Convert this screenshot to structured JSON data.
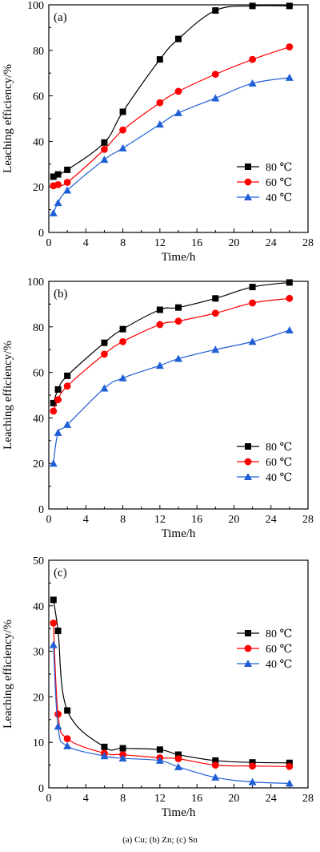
{
  "caption": "(a) Cu; (b) Zn; (c) Sn",
  "chart_data": [
    {
      "type": "line",
      "panel_label": "(a)",
      "xlabel": "Time/h",
      "ylabel": "Leaching efficiency/%",
      "xlim": [
        0,
        28
      ],
      "ylim": [
        0,
        100
      ],
      "xticks": [
        0,
        4,
        8,
        12,
        16,
        20,
        24,
        28
      ],
      "yticks": [
        0,
        20,
        40,
        60,
        80,
        100
      ],
      "legend_position": "center-right",
      "series": [
        {
          "name": "80 ℃",
          "color": "#000000",
          "marker": "square",
          "x": [
            0.5,
            1,
            2,
            6,
            8,
            12,
            14,
            18,
            22,
            26
          ],
          "y": [
            24.5,
            25.5,
            27.5,
            39.5,
            53,
            76,
            85,
            97.5,
            99.5,
            99.5
          ]
        },
        {
          "name": "60 ℃",
          "color": "#ff0000",
          "marker": "circle",
          "x": [
            0.5,
            1,
            2,
            6,
            8,
            12,
            14,
            18,
            22,
            26
          ],
          "y": [
            20.5,
            21,
            22,
            36.5,
            45,
            57,
            62,
            69.5,
            76,
            81.5
          ]
        },
        {
          "name": "40 ℃",
          "color": "#1f5fd6",
          "marker": "triangle",
          "x": [
            0.5,
            1,
            2,
            6,
            8,
            12,
            14,
            18,
            22,
            26
          ],
          "y": [
            8.5,
            13,
            18.5,
            32,
            37,
            47.5,
            52.5,
            59,
            65.5,
            68
          ]
        }
      ]
    },
    {
      "type": "line",
      "panel_label": "(b)",
      "xlabel": "Time/h",
      "ylabel": "Leaching efficiency/%",
      "xlim": [
        0,
        28
      ],
      "ylim": [
        0,
        100
      ],
      "xticks": [
        0,
        4,
        8,
        12,
        16,
        20,
        24,
        28
      ],
      "yticks": [
        0,
        20,
        40,
        60,
        80,
        100
      ],
      "legend_position": "bottom-right",
      "series": [
        {
          "name": "80 ℃",
          "color": "#000000",
          "marker": "square",
          "x": [
            0.5,
            1,
            2,
            6,
            8,
            12,
            14,
            18,
            22,
            26
          ],
          "y": [
            46.5,
            52.5,
            58.5,
            73,
            79,
            87.5,
            88.5,
            92.5,
            97.5,
            99.5
          ]
        },
        {
          "name": "60 ℃",
          "color": "#ff0000",
          "marker": "circle",
          "x": [
            0.5,
            1,
            2,
            6,
            8,
            12,
            14,
            18,
            22,
            26
          ],
          "y": [
            43,
            48,
            54,
            68,
            73.5,
            81,
            82.5,
            86,
            90.5,
            92.5
          ]
        },
        {
          "name": "40 ℃",
          "color": "#1f5fd6",
          "marker": "triangle",
          "x": [
            0.5,
            1,
            2,
            6,
            8,
            12,
            14,
            18,
            22,
            26
          ],
          "y": [
            20,
            33.5,
            37,
            53,
            57.5,
            63,
            66,
            70,
            73.5,
            78.5
          ]
        }
      ]
    },
    {
      "type": "line",
      "panel_label": "(c)",
      "xlabel": "Time/h",
      "ylabel": "Leaching efficiency/%",
      "xlim": [
        0,
        28
      ],
      "ylim": [
        0,
        50
      ],
      "xticks": [
        0,
        4,
        8,
        12,
        16,
        20,
        24,
        28
      ],
      "yticks": [
        0,
        10,
        20,
        30,
        40,
        50
      ],
      "legend_position": "top-right",
      "series": [
        {
          "name": "80 ℃",
          "color": "#000000",
          "marker": "square",
          "x": [
            0.5,
            1,
            2,
            6,
            8,
            12,
            14,
            18,
            22,
            26
          ],
          "y": [
            41.3,
            34.5,
            17,
            9,
            8.7,
            8.4,
            7.3,
            6,
            5.6,
            5.5
          ]
        },
        {
          "name": "60 ℃",
          "color": "#ff0000",
          "marker": "circle",
          "x": [
            0.5,
            1,
            2,
            6,
            8,
            12,
            14,
            18,
            22,
            26
          ],
          "y": [
            36.2,
            16.2,
            10.8,
            7.6,
            7.3,
            6.6,
            6.4,
            5,
            4.8,
            4.7
          ]
        },
        {
          "name": "40 ℃",
          "color": "#1f5fd6",
          "marker": "triangle",
          "x": [
            0.5,
            1,
            2,
            6,
            8,
            12,
            14,
            18,
            22,
            26
          ],
          "y": [
            31.4,
            13.5,
            9.2,
            7,
            6.5,
            6,
            4.6,
            2.3,
            1.3,
            1
          ]
        }
      ]
    }
  ]
}
